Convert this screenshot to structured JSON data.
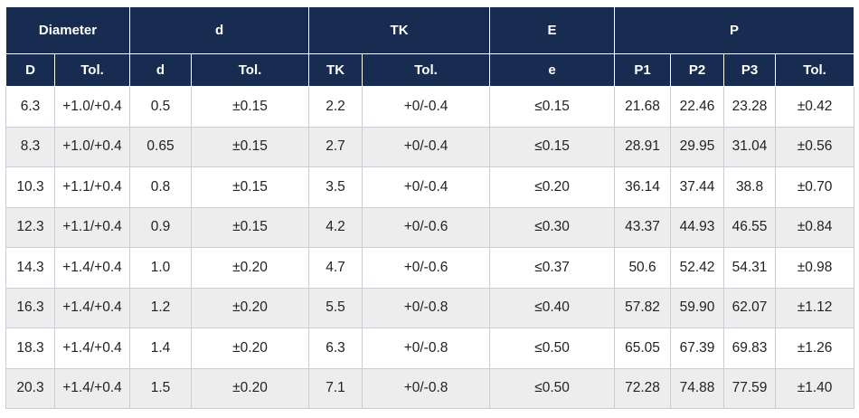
{
  "header_groups": [
    "Diameter",
    "d",
    "TK",
    "E",
    "P"
  ],
  "header_sub": [
    "D",
    "Tol.",
    "d",
    "Tol.",
    "TK",
    "Tol.",
    "e",
    "P1",
    "P2",
    "P3",
    "Tol."
  ],
  "rows": [
    [
      "6.3",
      "+1.0/+0.4",
      "0.5",
      "±0.15",
      "2.2",
      "+0/-0.4",
      "≤0.15",
      "21.68",
      "22.46",
      "23.28",
      "±0.42"
    ],
    [
      "8.3",
      "+1.0/+0.4",
      "0.65",
      "±0.15",
      "2.7",
      "+0/-0.4",
      "≤0.15",
      "28.91",
      "29.95",
      "31.04",
      "±0.56"
    ],
    [
      "10.3",
      "+1.1/+0.4",
      "0.8",
      "±0.15",
      "3.5",
      "+0/-0.4",
      "≤0.20",
      "36.14",
      "37.44",
      "38.8",
      "±0.70"
    ],
    [
      "12.3",
      "+1.1/+0.4",
      "0.9",
      "±0.15",
      "4.2",
      "+0/-0.6",
      "≤0.30",
      "43.37",
      "44.93",
      "46.55",
      "±0.84"
    ],
    [
      "14.3",
      "+1.4/+0.4",
      "1.0",
      "±0.20",
      "4.7",
      "+0/-0.6",
      "≤0.37",
      "50.6",
      "52.42",
      "54.31",
      "±0.98"
    ],
    [
      "16.3",
      "+1.4/+0.4",
      "1.2",
      "±0.20",
      "5.5",
      "+0/-0.8",
      "≤0.40",
      "57.82",
      "59.90",
      "62.07",
      "±1.12"
    ],
    [
      "18.3",
      "+1.4/+0.4",
      "1.4",
      "±0.20",
      "6.3",
      "+0/-0.8",
      "≤0.50",
      "65.05",
      "67.39",
      "69.83",
      "±1.26"
    ],
    [
      "20.3",
      "+1.4/+0.4",
      "1.5",
      "±0.20",
      "7.1",
      "+0/-0.8",
      "≤0.50",
      "72.28",
      "74.88",
      "77.59",
      "±1.40"
    ]
  ],
  "colors": {
    "header_bg": "#182c52",
    "header_text": "#ffffff",
    "alt_row_bg": "#ededed",
    "border": "#c9ced6"
  }
}
